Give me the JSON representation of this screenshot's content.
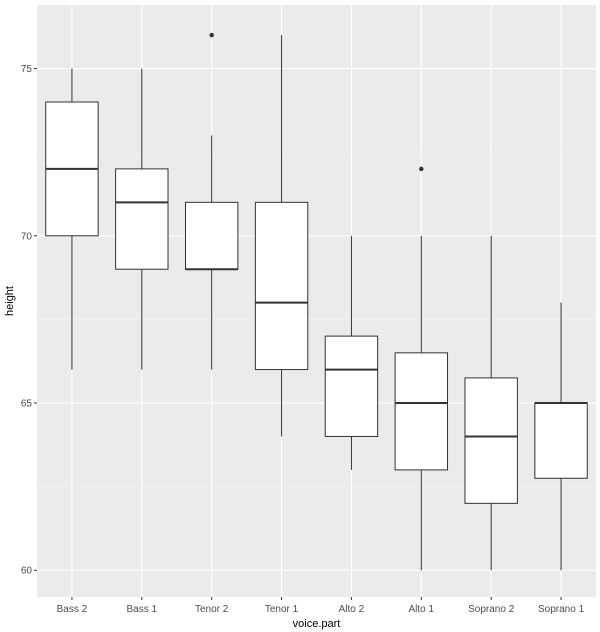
{
  "chart_data": {
    "type": "box",
    "title": "",
    "xlabel": "voice.part",
    "ylabel": "height",
    "ylim": [
      59.2,
      76.9
    ],
    "yticks": [
      60,
      65,
      70,
      75
    ],
    "grid": true,
    "colors": {
      "panel": "#ebebeb",
      "grid_major": "#ffffff",
      "box_fill": "#ffffff",
      "box_stroke": "#333333",
      "tick_text": "#4d4d4d"
    },
    "categories": [
      "Bass 2",
      "Bass 1",
      "Tenor 2",
      "Tenor 1",
      "Alto 2",
      "Alto 1",
      "Soprano 2",
      "Soprano 1"
    ],
    "boxes": [
      {
        "category": "Bass 2",
        "min": 66,
        "q1": 70,
        "median": 72,
        "q3": 74,
        "max": 75,
        "outliers": []
      },
      {
        "category": "Bass 1",
        "min": 66,
        "q1": 69,
        "median": 71,
        "q3": 72,
        "max": 75,
        "outliers": []
      },
      {
        "category": "Tenor 2",
        "min": 66,
        "q1": 69,
        "median": 69,
        "q3": 71,
        "max": 73,
        "outliers": [
          76
        ]
      },
      {
        "category": "Tenor 1",
        "min": 64,
        "q1": 66,
        "median": 68,
        "q3": 71,
        "max": 76,
        "outliers": []
      },
      {
        "category": "Alto 2",
        "min": 63,
        "q1": 64,
        "median": 66,
        "q3": 67,
        "max": 70,
        "outliers": []
      },
      {
        "category": "Alto 1",
        "min": 60,
        "q1": 63,
        "median": 65,
        "q3": 66.5,
        "max": 70,
        "outliers": [
          72
        ]
      },
      {
        "category": "Soprano 2",
        "min": 60,
        "q1": 62,
        "median": 64,
        "q3": 65.75,
        "max": 70,
        "outliers": []
      },
      {
        "category": "Soprano 1",
        "min": 60,
        "q1": 62.75,
        "median": 65,
        "q3": 65,
        "max": 68,
        "outliers": []
      }
    ]
  }
}
